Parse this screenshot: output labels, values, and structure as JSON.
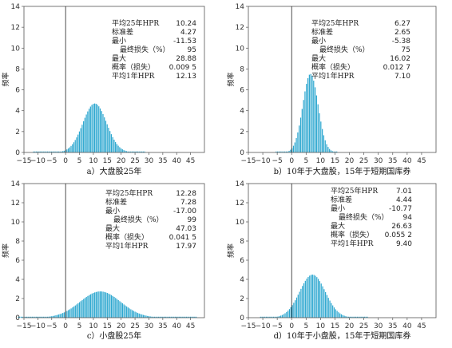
{
  "chart_data": [
    {
      "type": "bar",
      "caption": "a）大盘股25年",
      "ylabel": "频率",
      "xlim": [
        -15,
        50
      ],
      "ylim": [
        0,
        14
      ],
      "xticks": [
        -15,
        -10,
        -5,
        0,
        5,
        10,
        15,
        20,
        25,
        30,
        35,
        40,
        45
      ],
      "yticks": [
        0,
        2,
        4,
        6,
        8,
        10,
        12,
        14
      ],
      "dist": {
        "mean": 10.5,
        "sd": 4.25,
        "min": -11.53,
        "max": 28.88
      },
      "stats": [
        {
          "label": "平均25年HPR",
          "value": "10.24"
        },
        {
          "label": "标准差",
          "value": "4.27"
        },
        {
          "label": "最小",
          "value": "-11.53"
        },
        {
          "label": "最终损失（%）",
          "value": "95"
        },
        {
          "label": "最大",
          "value": "28.88"
        },
        {
          "label": "概率（损失）",
          "value": "0.009 5"
        },
        {
          "label": "平均1年HPR",
          "value": "12.13"
        }
      ]
    },
    {
      "type": "bar",
      "caption": "b）10年于大盘股，15年于短期国库券",
      "ylabel": "频率",
      "xlim": [
        -15,
        50
      ],
      "ylim": [
        0,
        14
      ],
      "xticks": [
        -15,
        -10,
        -5,
        0,
        5,
        10,
        15,
        20,
        25,
        30,
        35,
        40,
        45
      ],
      "yticks": [
        0,
        2,
        4,
        6,
        8,
        10,
        12,
        14
      ],
      "dist": {
        "mean": 6.5,
        "sd": 2.65,
        "min": -5.38,
        "max": 16.02
      },
      "stats": [
        {
          "label": "平均25年HPR",
          "value": "6.27"
        },
        {
          "label": "标准差",
          "value": "2.65"
        },
        {
          "label": "最小",
          "value": "-5.38"
        },
        {
          "label": "最终损失（%）",
          "value": "75"
        },
        {
          "label": "最大",
          "value": "16.02"
        },
        {
          "label": "概率（损失）",
          "value": "0.012 7"
        },
        {
          "label": "平均1年HPR",
          "value": "7.10"
        }
      ]
    },
    {
      "type": "bar",
      "caption": "c）小盘股25年",
      "ylabel": "频率",
      "xlim": [
        -15,
        50
      ],
      "ylim": [
        0,
        14
      ],
      "xticks": [
        -15,
        -10,
        -5,
        0,
        5,
        10,
        15,
        20,
        25,
        30,
        35,
        40,
        45
      ],
      "yticks": [
        0,
        2,
        4,
        6,
        8,
        10,
        12,
        14
      ],
      "dist": {
        "mean": 12.5,
        "sd": 7.28,
        "min": -17.0,
        "max": 47.03
      },
      "stats": [
        {
          "label": "平均25年HPR",
          "value": "12.28"
        },
        {
          "label": "标准差",
          "value": "7.28"
        },
        {
          "label": "最小",
          "value": "-17.00"
        },
        {
          "label": "最终损失（%）",
          "value": "99"
        },
        {
          "label": "最大",
          "value": "47.03"
        },
        {
          "label": "概率（损失）",
          "value": "0.041 5"
        },
        {
          "label": "平均1年HPR",
          "value": "17.97"
        }
      ]
    },
    {
      "type": "bar",
      "caption": "d）10年于小盘股，15年于短期国库券",
      "ylabel": "频率",
      "xlim": [
        -15,
        50
      ],
      "ylim": [
        0,
        14
      ],
      "xticks": [
        -15,
        -10,
        -5,
        0,
        5,
        10,
        15,
        20,
        25,
        30,
        35,
        40,
        45
      ],
      "yticks": [
        0,
        2,
        4,
        6,
        8,
        10,
        12,
        14
      ],
      "dist": {
        "mean": 7.2,
        "sd": 4.44,
        "min": -10.77,
        "max": 26.63
      },
      "stats": [
        {
          "label": "平均25年HPR",
          "value": "7.01"
        },
        {
          "label": "标准差",
          "value": "4.44"
        },
        {
          "label": "最小",
          "value": "-10.77"
        },
        {
          "label": "最终损失（%）",
          "value": "94"
        },
        {
          "label": "最大",
          "value": "26.63"
        },
        {
          "label": "概率（损失）",
          "value": "0.055 2"
        },
        {
          "label": "平均1年HPR",
          "value": "9.40"
        }
      ]
    }
  ]
}
